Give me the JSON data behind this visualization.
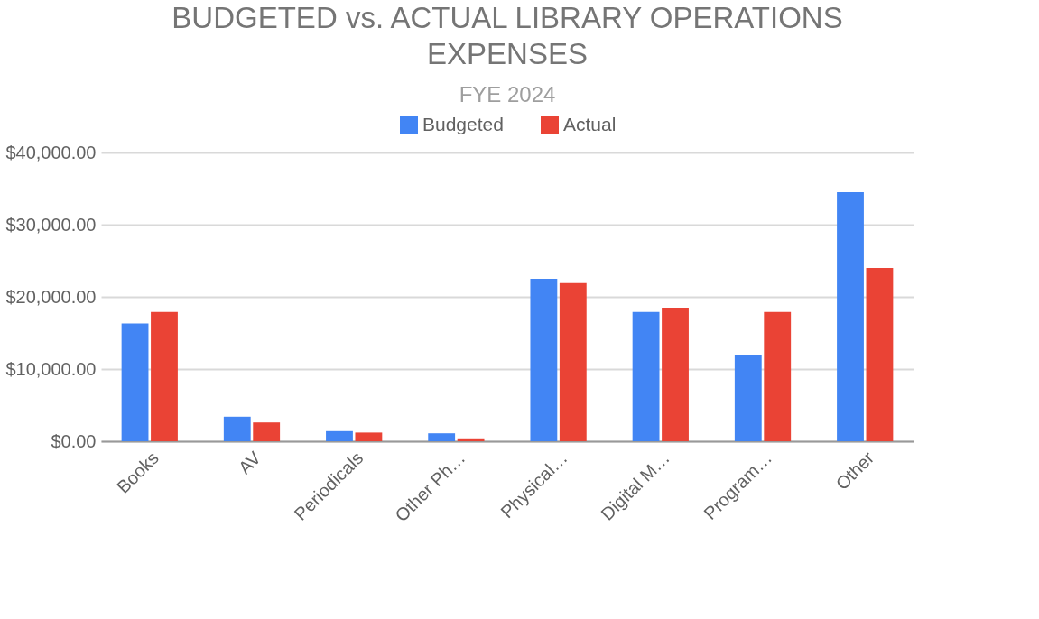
{
  "chart_data": {
    "type": "bar",
    "title": "BUDGETED vs. ACTUAL LIBRARY OPERATIONS EXPENSES",
    "subtitle": "FYE 2024",
    "categories": [
      "Books",
      "AV",
      "Periodicals",
      "Other Ph…",
      "Physical…",
      "Digital M…",
      "Program…",
      "Other"
    ],
    "series": [
      {
        "name": "Budgeted",
        "color": "#4285f4",
        "values": [
          16300,
          3400,
          1400,
          1100,
          22500,
          17900,
          12000,
          34500
        ]
      },
      {
        "name": "Actual",
        "color": "#ea4335",
        "values": [
          17900,
          2600,
          1200,
          400,
          21900,
          18500,
          17900,
          24000
        ]
      }
    ],
    "ylim": [
      0,
      40000
    ],
    "yticks": [
      {
        "value": 0,
        "label": "$0.00"
      },
      {
        "value": 10000,
        "label": "$10,000.00"
      },
      {
        "value": 20000,
        "label": "$20,000.00"
      },
      {
        "value": 30000,
        "label": "$30,000.00"
      },
      {
        "value": 40000,
        "label": "$40,000.00"
      }
    ],
    "grid": "y",
    "legend": "top"
  }
}
